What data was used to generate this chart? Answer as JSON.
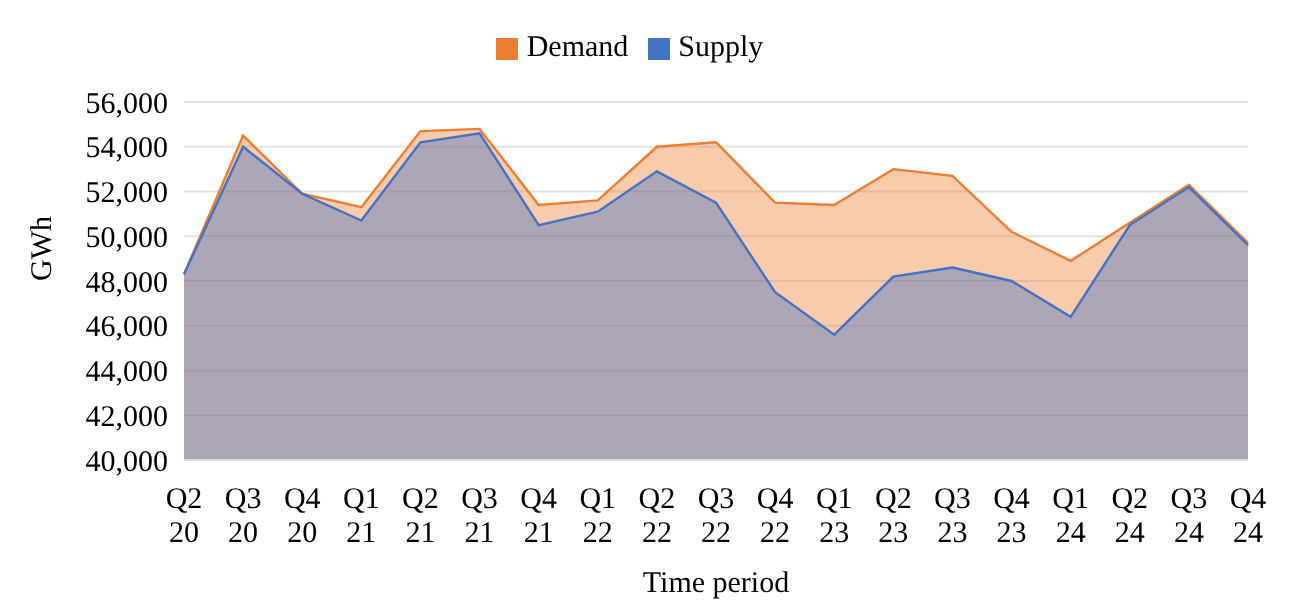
{
  "chart_data": {
    "type": "area",
    "xlabel": "Time period",
    "ylabel": "GWh",
    "categories": [
      "Q2 20",
      "Q3 20",
      "Q4 20",
      "Q1 21",
      "Q2 21",
      "Q3 21",
      "Q4 21",
      "Q1 22",
      "Q2 22",
      "Q3 22",
      "Q4 22",
      "Q1 23",
      "Q2 23",
      "Q3 23",
      "Q4 23",
      "Q1 24",
      "Q2 24",
      "Q3 24",
      "Q4 24"
    ],
    "series": [
      {
        "name": "Demand",
        "color": "#ed7d31",
        "values": [
          48300,
          54500,
          51900,
          51300,
          54700,
          54800,
          51400,
          51600,
          54000,
          54200,
          51500,
          51400,
          53000,
          52700,
          50200,
          48900,
          50600,
          52300,
          49700
        ]
      },
      {
        "name": "Supply",
        "color": "#4472c4",
        "values": [
          48300,
          54000,
          51900,
          50700,
          54200,
          54600,
          50500,
          51100,
          52900,
          51500,
          47500,
          45600,
          48200,
          48600,
          48000,
          46400,
          50500,
          52200,
          49600
        ]
      }
    ],
    "ylim": [
      40000,
      56000
    ],
    "yticks": [
      {
        "value": 40000,
        "label": "40,000"
      },
      {
        "value": 42000,
        "label": "42,000"
      },
      {
        "value": 44000,
        "label": "44,000"
      },
      {
        "value": 46000,
        "label": "46,000"
      },
      {
        "value": 48000,
        "label": "48,000"
      },
      {
        "value": 50000,
        "label": "50,000"
      },
      {
        "value": 52000,
        "label": "52,000"
      },
      {
        "value": 54000,
        "label": "54,000"
      },
      {
        "value": 56000,
        "label": "56,000"
      }
    ],
    "grid": "y",
    "legend": "top"
  }
}
